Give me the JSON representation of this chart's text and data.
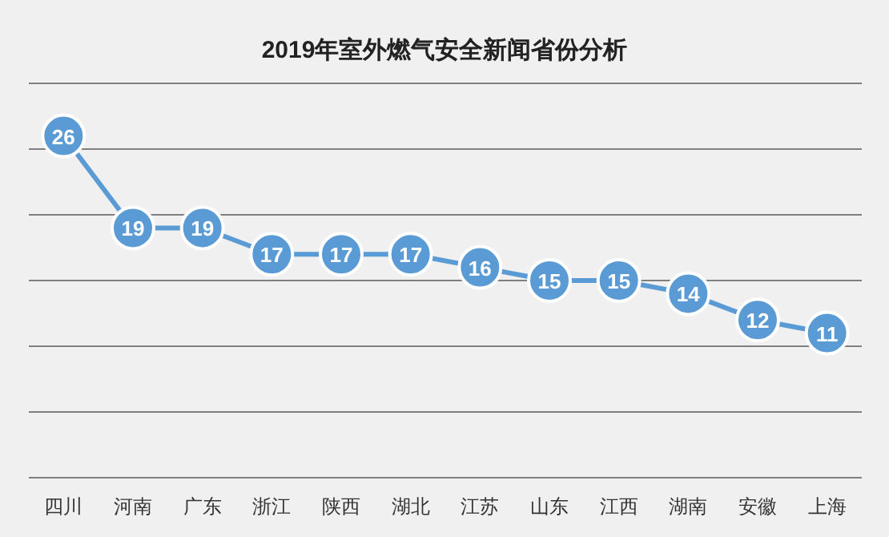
{
  "chart_data": {
    "type": "line",
    "title": "2019年室外燃气安全新闻省份分析",
    "categories": [
      "四川",
      "河南",
      "广东",
      "浙江",
      "陕西",
      "湖北",
      "江苏",
      "山东",
      "江西",
      "湖南",
      "安徽",
      "上海"
    ],
    "series": [
      {
        "color": "#5b9bd5",
        "values": [
          26,
          19,
          19,
          17,
          17,
          17,
          16,
          15,
          15,
          14,
          12,
          11
        ]
      }
    ],
    "ylim": [
      0,
      30
    ],
    "yticks": [
      {
        "value": 0,
        "label": null
      },
      {
        "value": 5,
        "label": null
      },
      {
        "value": 10,
        "label": null
      },
      {
        "value": 15,
        "label": null
      },
      {
        "value": 20,
        "label": null
      },
      {
        "value": 25,
        "label": null
      },
      {
        "value": 30,
        "label": null
      }
    ],
    "grid": "y",
    "tick_labels": "x",
    "marker": "circle",
    "data_labels": true
  }
}
